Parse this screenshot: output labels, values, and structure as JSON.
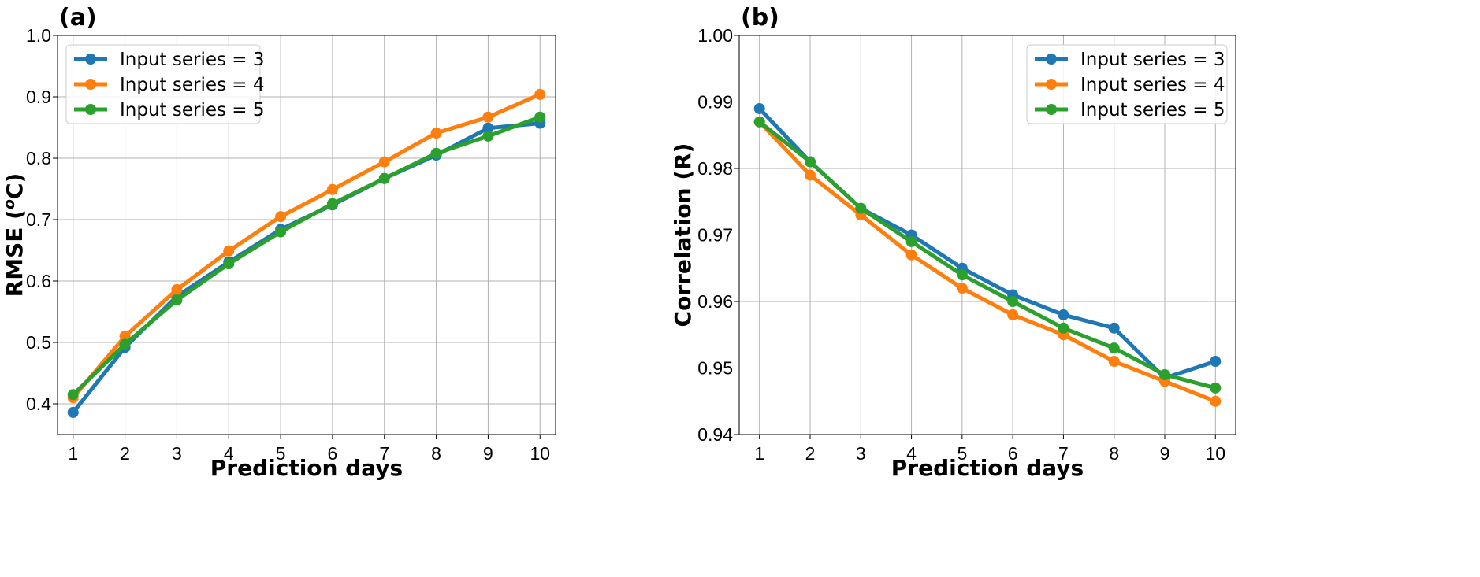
{
  "chart_data": [
    {
      "type": "line",
      "panel_label": "(a)",
      "xlabel": "Prediction days",
      "ylabel": {
        "before": "RMSE (",
        "sup": "o",
        "after": "C)"
      },
      "x": [
        1,
        2,
        3,
        4,
        5,
        6,
        7,
        8,
        9,
        10
      ],
      "xlim": [
        0.7,
        10.3
      ],
      "ylim": [
        0.35,
        1.0
      ],
      "yticks": [
        0.4,
        0.5,
        0.6,
        0.7,
        0.8,
        0.9,
        1.0
      ],
      "ytick_labels": [
        "0.4",
        "0.5",
        "0.6",
        "0.7",
        "0.8",
        "0.9",
        "1.0"
      ],
      "grid": true,
      "legend": "top-left",
      "series": [
        {
          "name": "Input series = 3",
          "color": "#1f77b4",
          "values": [
            0.386,
            0.492,
            0.575,
            0.631,
            0.684,
            0.724,
            0.767,
            0.805,
            0.849,
            0.857
          ]
        },
        {
          "name": "Input series = 4",
          "color": "#ff7f0e",
          "values": [
            0.41,
            0.51,
            0.586,
            0.649,
            0.705,
            0.749,
            0.794,
            0.841,
            0.867,
            0.904
          ]
        },
        {
          "name": "Input series = 5",
          "color": "#2ca02c",
          "values": [
            0.415,
            0.497,
            0.569,
            0.628,
            0.68,
            0.726,
            0.767,
            0.808,
            0.836,
            0.867
          ]
        }
      ]
    },
    {
      "type": "line",
      "panel_label": "(b)",
      "xlabel": "Prediction days",
      "ylabel": {
        "before": "Correlation (R)",
        "sup": "",
        "after": ""
      },
      "x": [
        1,
        2,
        3,
        4,
        5,
        6,
        7,
        8,
        9,
        10
      ],
      "xlim": [
        0.6,
        10.4
      ],
      "ylim": [
        0.94,
        1.0
      ],
      "yticks": [
        0.94,
        0.95,
        0.96,
        0.97,
        0.98,
        0.99,
        1.0
      ],
      "ytick_labels": [
        "0.94",
        "0.95",
        "0.96",
        "0.97",
        "0.98",
        "0.99",
        "1.00"
      ],
      "grid": true,
      "legend": "top-right",
      "series": [
        {
          "name": "Input series = 3",
          "color": "#1f77b4",
          "values": [
            0.989,
            0.981,
            0.974,
            0.97,
            0.965,
            0.961,
            0.958,
            0.956,
            0.9485,
            0.951
          ]
        },
        {
          "name": "Input series = 4",
          "color": "#ff7f0e",
          "values": [
            0.987,
            0.979,
            0.973,
            0.967,
            0.962,
            0.958,
            0.955,
            0.951,
            0.948,
            0.945
          ]
        },
        {
          "name": "Input series = 5",
          "color": "#2ca02c",
          "values": [
            0.987,
            0.981,
            0.974,
            0.969,
            0.964,
            0.96,
            0.956,
            0.953,
            0.949,
            0.947
          ]
        }
      ]
    }
  ]
}
